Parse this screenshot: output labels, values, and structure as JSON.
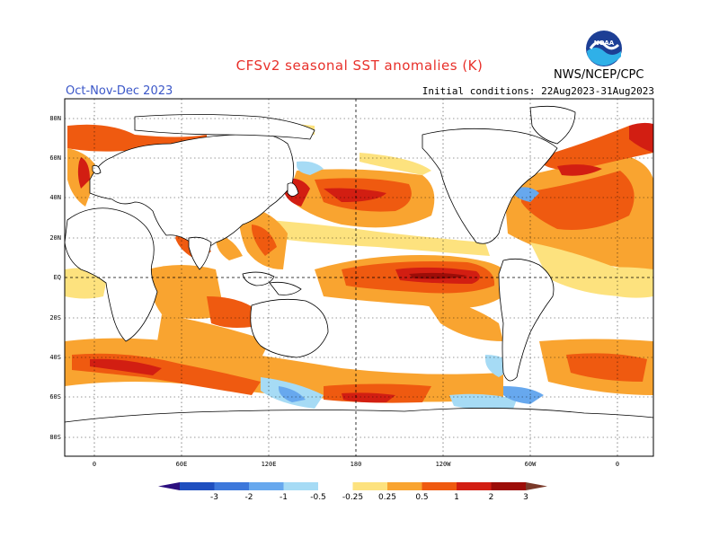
{
  "title": "CFSv2 seasonal SST anomalies (K)",
  "season": "Oct-Nov-Dec 2023",
  "initial_conditions": "Initial conditions: 22Aug2023-31Aug2023",
  "agency": "NWS/NCEP/CPC",
  "logo_text": "NOAA",
  "lat_labels": [
    "80N",
    "60N",
    "40N",
    "20N",
    "EQ",
    "20S",
    "40S",
    "60S",
    "80S"
  ],
  "lon_labels": [
    "0",
    "60E",
    "120E",
    "180",
    "120W",
    "60W",
    "0"
  ],
  "colorbar": {
    "ticks": [
      "-3",
      "-2",
      "-1",
      "-0.5",
      "-0.25",
      "0.25",
      "0.5",
      "1",
      "2",
      "3"
    ],
    "colors": [
      "#2b0f7f",
      "#1f4fbf",
      "#3d78db",
      "#67a8ee",
      "#a6dbf5",
      "#ffffff",
      "#fde27e",
      "#f9a430",
      "#ef5a10",
      "#d21e12",
      "#9c0d08",
      "#7a3a2a"
    ]
  }
}
